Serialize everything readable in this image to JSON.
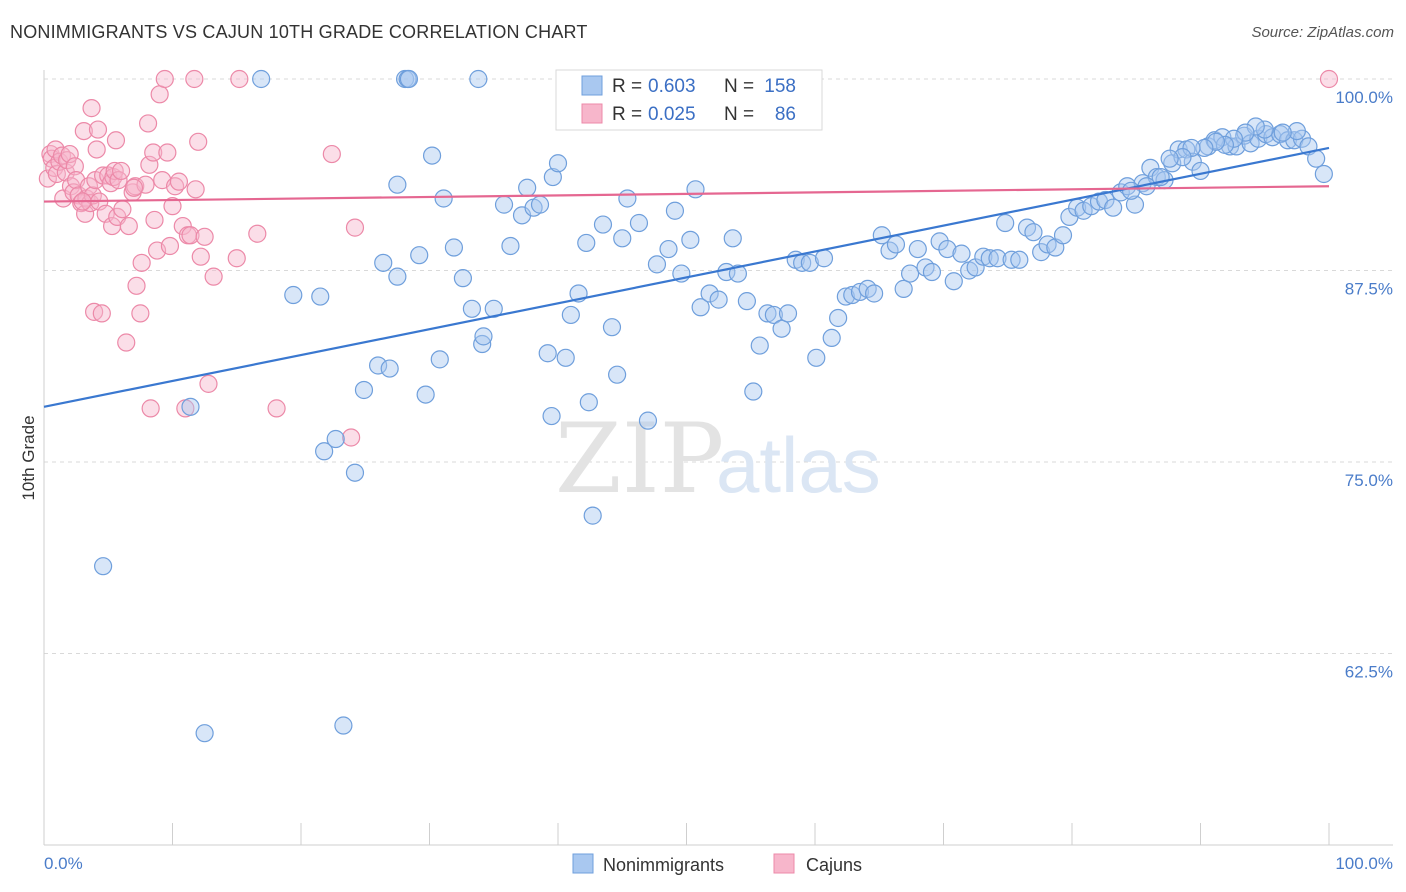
{
  "title": "NONIMMIGRANTS VS CAJUN 10TH GRADE CORRELATION CHART",
  "source": "Source: ZipAtlas.com",
  "watermark": {
    "zip": "ZIP",
    "atlas": "atlas"
  },
  "colors": {
    "nonimmigrants_fill": "#a9c8f0",
    "nonimmigrants_stroke": "#6f9fdc",
    "nonimmigrants_line": "#3a78d0",
    "cajuns_fill": "#f7b6cb",
    "cajuns_stroke": "#ec89a8",
    "cajuns_line": "#e56791",
    "tick_label": "#4a7cc9",
    "grid": "#d9d9d9"
  },
  "legend": {
    "r_label": "R =",
    "n_label": "N =",
    "rows": [
      {
        "r": "0.603",
        "n": "158"
      },
      {
        "r": "0.025",
        "n": "86"
      }
    ]
  },
  "bottom_legend": [
    "Nonimmigrants",
    "Cajuns"
  ],
  "chart_data": {
    "type": "scatter",
    "ylabel": "10th Grade",
    "xlabel": "",
    "xlim": [
      0,
      100
    ],
    "ylim": [
      52.4,
      103
    ],
    "x_tick_labels": [
      "0.0%",
      "100.0%"
    ],
    "y_ticks": [
      62.5,
      75.0,
      87.5,
      100.0
    ],
    "y_tick_labels": [
      "62.5%",
      "75.0%",
      "87.5%",
      "100.0%"
    ],
    "grid": "horizontal dashed",
    "legend_position": "top-center",
    "series": [
      {
        "name": "Nonimmigrants",
        "r": 0.603,
        "n": 158,
        "trend": {
          "x": [
            0,
            100
          ],
          "y": [
            78.6,
            95.5
          ]
        },
        "points": [
          [
            4.6,
            68.2
          ],
          [
            11.4,
            78.6
          ],
          [
            12.5,
            57.3
          ],
          [
            16.9,
            100
          ],
          [
            19.4,
            85.9
          ],
          [
            21.5,
            85.8
          ],
          [
            21.8,
            75.7
          ],
          [
            22.7,
            76.5
          ],
          [
            23.3,
            57.8
          ],
          [
            24.2,
            74.3
          ],
          [
            24.9,
            79.7
          ],
          [
            26.0,
            81.3
          ],
          [
            26.4,
            88.0
          ],
          [
            26.9,
            81.1
          ],
          [
            27.5,
            87.1
          ],
          [
            27.5,
            93.1
          ],
          [
            28.1,
            100
          ],
          [
            28.3,
            100
          ],
          [
            28.4,
            100
          ],
          [
            29.2,
            88.5
          ],
          [
            29.7,
            79.4
          ],
          [
            30.2,
            95.0
          ],
          [
            30.8,
            81.7
          ],
          [
            31.1,
            92.2
          ],
          [
            31.9,
            89.0
          ],
          [
            32.6,
            87.0
          ],
          [
            33.3,
            85.0
          ],
          [
            33.8,
            100
          ],
          [
            34.1,
            82.7
          ],
          [
            34.2,
            83.2
          ],
          [
            35.0,
            85.0
          ],
          [
            35.8,
            91.8
          ],
          [
            36.3,
            89.1
          ],
          [
            37.2,
            91.1
          ],
          [
            37.6,
            92.9
          ],
          [
            38.1,
            91.6
          ],
          [
            38.6,
            91.8
          ],
          [
            39.2,
            82.1
          ],
          [
            39.6,
            93.6
          ],
          [
            39.5,
            78.0
          ],
          [
            40.0,
            94.5
          ],
          [
            40.6,
            81.8
          ],
          [
            41.0,
            84.6
          ],
          [
            41.6,
            86.0
          ],
          [
            42.2,
            89.3
          ],
          [
            42.4,
            78.9
          ],
          [
            42.7,
            71.5
          ],
          [
            43.5,
            90.5
          ],
          [
            44.2,
            83.8
          ],
          [
            44.6,
            80.7
          ],
          [
            45.0,
            89.6
          ],
          [
            45.4,
            92.2
          ],
          [
            46.3,
            90.6
          ],
          [
            47.0,
            77.7
          ],
          [
            47.7,
            87.9
          ],
          [
            48.6,
            88.9
          ],
          [
            49.1,
            91.4
          ],
          [
            49.6,
            87.3
          ],
          [
            50.3,
            89.5
          ],
          [
            50.7,
            92.8
          ],
          [
            51.1,
            85.1
          ],
          [
            51.8,
            86.0
          ],
          [
            52.5,
            85.6
          ],
          [
            53.1,
            87.4
          ],
          [
            53.6,
            89.6
          ],
          [
            54.0,
            87.3
          ],
          [
            54.7,
            85.5
          ],
          [
            55.2,
            79.6
          ],
          [
            55.7,
            82.6
          ],
          [
            56.3,
            84.7
          ],
          [
            56.8,
            84.6
          ],
          [
            57.4,
            83.7
          ],
          [
            57.9,
            84.7
          ],
          [
            58.5,
            88.2
          ],
          [
            59.0,
            88.0
          ],
          [
            59.6,
            88.0
          ],
          [
            60.1,
            81.8
          ],
          [
            60.7,
            88.3
          ],
          [
            61.3,
            83.1
          ],
          [
            61.8,
            84.4
          ],
          [
            62.4,
            85.8
          ],
          [
            62.9,
            85.9
          ],
          [
            63.5,
            86.1
          ],
          [
            64.1,
            86.3
          ],
          [
            64.6,
            86.0
          ],
          [
            65.2,
            89.8
          ],
          [
            65.8,
            88.8
          ],
          [
            66.3,
            89.2
          ],
          [
            66.9,
            86.3
          ],
          [
            67.4,
            87.3
          ],
          [
            68.0,
            88.9
          ],
          [
            68.6,
            87.7
          ],
          [
            69.1,
            87.4
          ],
          [
            69.7,
            89.4
          ],
          [
            70.3,
            88.9
          ],
          [
            70.8,
            86.8
          ],
          [
            71.4,
            88.6
          ],
          [
            72.0,
            87.5
          ],
          [
            72.5,
            87.7
          ],
          [
            73.1,
            88.4
          ],
          [
            73.6,
            88.3
          ],
          [
            74.2,
            88.3
          ],
          [
            74.8,
            90.6
          ],
          [
            75.3,
            88.2
          ],
          [
            75.9,
            88.2
          ],
          [
            76.5,
            90.3
          ],
          [
            77.0,
            90.0
          ],
          [
            77.6,
            88.7
          ],
          [
            78.1,
            89.2
          ],
          [
            78.7,
            89.0
          ],
          [
            79.3,
            89.8
          ],
          [
            79.8,
            91.0
          ],
          [
            80.4,
            91.6
          ],
          [
            80.9,
            91.4
          ],
          [
            81.5,
            91.7
          ],
          [
            82.1,
            92.0
          ],
          [
            82.6,
            92.1
          ],
          [
            83.2,
            91.6
          ],
          [
            83.8,
            92.6
          ],
          [
            84.3,
            93.0
          ],
          [
            84.9,
            91.8
          ],
          [
            85.5,
            93.2
          ],
          [
            86.1,
            94.2
          ],
          [
            86.6,
            93.6
          ],
          [
            87.2,
            93.4
          ],
          [
            87.8,
            94.5
          ],
          [
            88.3,
            95.4
          ],
          [
            88.9,
            95.4
          ],
          [
            89.4,
            94.6
          ],
          [
            90.0,
            94.0
          ],
          [
            90.6,
            95.6
          ],
          [
            91.1,
            96.0
          ],
          [
            91.7,
            96.2
          ],
          [
            92.3,
            95.6
          ],
          [
            92.8,
            95.6
          ],
          [
            93.4,
            96.3
          ],
          [
            93.9,
            95.8
          ],
          [
            94.5,
            96.1
          ],
          [
            95.1,
            96.4
          ],
          [
            95.6,
            96.2
          ],
          [
            96.2,
            96.4
          ],
          [
            96.8,
            96.0
          ],
          [
            97.3,
            96.0
          ],
          [
            97.9,
            96.1
          ],
          [
            98.4,
            95.6
          ],
          [
            99.0,
            94.8
          ],
          [
            99.6,
            93.8
          ],
          [
            97.5,
            96.6
          ],
          [
            96.4,
            96.5
          ],
          [
            95.0,
            96.7
          ],
          [
            94.3,
            96.9
          ],
          [
            93.5,
            96.5
          ],
          [
            92.6,
            96.1
          ],
          [
            91.9,
            95.7
          ],
          [
            91.2,
            95.9
          ],
          [
            90.3,
            95.5
          ],
          [
            89.3,
            95.5
          ],
          [
            88.6,
            94.9
          ],
          [
            87.6,
            94.8
          ],
          [
            86.9,
            93.6
          ],
          [
            85.8,
            93.0
          ],
          [
            84.6,
            92.7
          ]
        ]
      },
      {
        "name": "Cajuns",
        "r": 0.025,
        "n": 86,
        "trend": {
          "x": [
            0,
            100
          ],
          "y": [
            92.0,
            93.0
          ]
        },
        "points": [
          [
            0.3,
            93.5
          ],
          [
            0.5,
            95.1
          ],
          [
            0.6,
            94.8
          ],
          [
            0.8,
            94.2
          ],
          [
            0.9,
            95.4
          ],
          [
            1.0,
            93.8
          ],
          [
            1.2,
            94.6
          ],
          [
            1.4,
            95.0
          ],
          [
            1.5,
            92.2
          ],
          [
            1.7,
            93.9
          ],
          [
            1.8,
            94.7
          ],
          [
            2.0,
            95.1
          ],
          [
            2.1,
            93.0
          ],
          [
            2.3,
            92.6
          ],
          [
            2.4,
            94.3
          ],
          [
            2.5,
            93.4
          ],
          [
            2.7,
            92.4
          ],
          [
            2.9,
            91.9
          ],
          [
            3.1,
            96.6
          ],
          [
            3.2,
            91.2
          ],
          [
            3.3,
            92.2
          ],
          [
            3.5,
            93.0
          ],
          [
            3.6,
            91.9
          ],
          [
            3.7,
            98.1
          ],
          [
            3.8,
            92.4
          ],
          [
            3.9,
            84.8
          ],
          [
            4.0,
            93.4
          ],
          [
            4.1,
            95.4
          ],
          [
            4.2,
            96.7
          ],
          [
            4.3,
            92.0
          ],
          [
            4.5,
            84.7
          ],
          [
            4.6,
            93.7
          ],
          [
            4.8,
            91.2
          ],
          [
            5.0,
            93.7
          ],
          [
            5.2,
            93.2
          ],
          [
            5.3,
            90.4
          ],
          [
            5.4,
            93.6
          ],
          [
            5.5,
            94.0
          ],
          [
            5.6,
            96.0
          ],
          [
            5.7,
            91.0
          ],
          [
            5.8,
            93.4
          ],
          [
            6.1,
            91.5
          ],
          [
            6.4,
            82.8
          ],
          [
            6.6,
            90.4
          ],
          [
            6.9,
            92.6
          ],
          [
            7.1,
            93.0
          ],
          [
            7.2,
            86.5
          ],
          [
            7.5,
            84.7
          ],
          [
            7.6,
            88.0
          ],
          [
            7.9,
            93.1
          ],
          [
            8.1,
            97.1
          ],
          [
            8.2,
            94.4
          ],
          [
            8.3,
            78.5
          ],
          [
            8.5,
            95.2
          ],
          [
            8.6,
            90.8
          ],
          [
            8.8,
            88.8
          ],
          [
            9.0,
            99.0
          ],
          [
            9.2,
            93.4
          ],
          [
            9.4,
            100
          ],
          [
            9.6,
            95.2
          ],
          [
            9.8,
            89.1
          ],
          [
            10.0,
            91.7
          ],
          [
            10.2,
            93.0
          ],
          [
            10.5,
            93.3
          ],
          [
            10.8,
            90.4
          ],
          [
            11.0,
            78.5
          ],
          [
            11.2,
            89.8
          ],
          [
            11.4,
            89.8
          ],
          [
            11.7,
            100
          ],
          [
            11.8,
            92.8
          ],
          [
            12.0,
            95.9
          ],
          [
            12.2,
            88.4
          ],
          [
            12.5,
            89.7
          ],
          [
            12.8,
            80.1
          ],
          [
            13.2,
            87.1
          ],
          [
            15.0,
            88.3
          ],
          [
            15.2,
            100
          ],
          [
            16.6,
            89.9
          ],
          [
            18.1,
            78.5
          ],
          [
            22.4,
            95.1
          ],
          [
            23.9,
            76.6
          ],
          [
            24.2,
            90.3
          ],
          [
            3.0,
            92.0
          ],
          [
            6.0,
            94.0
          ],
          [
            7.0,
            92.9
          ],
          [
            100,
            100
          ]
        ]
      }
    ]
  }
}
